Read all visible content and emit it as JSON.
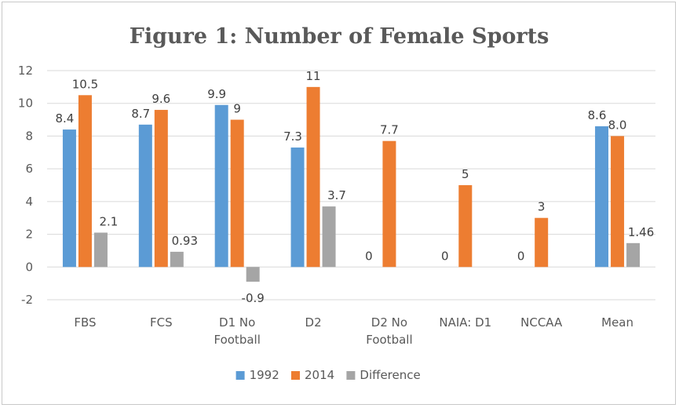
{
  "chart_data": {
    "type": "bar",
    "title": "Figure 1: Number of Female Sports",
    "xlabel": "",
    "ylabel": "",
    "ylim": [
      -2,
      12
    ],
    "yticks": [
      -2,
      0,
      2,
      4,
      6,
      8,
      10,
      12
    ],
    "grid": true,
    "legend_position": "bottom",
    "categories": [
      [
        "FBS"
      ],
      [
        "FCS"
      ],
      [
        "D1 No",
        "Football"
      ],
      [
        "D2"
      ],
      [
        "D2 No",
        "Football"
      ],
      [
        "NAIA: D1"
      ],
      [
        "NCCAA"
      ],
      [
        "Mean"
      ]
    ],
    "series": [
      {
        "name": "1992",
        "color": "#5b9bd5",
        "values": [
          8.4,
          8.7,
          9.9,
          7.3,
          0,
          0,
          0,
          8.6
        ],
        "labels": [
          "8.4",
          "8.7",
          "9.9",
          "7.3",
          "0",
          "0",
          "0",
          "8.6"
        ],
        "label_colors": [
          "",
          "",
          "",
          "",
          "",
          "",
          "",
          ""
        ]
      },
      {
        "name": "2014",
        "color": "#ed7d31",
        "values": [
          10.5,
          9.6,
          9,
          11,
          7.7,
          5,
          3,
          8.0
        ],
        "labels": [
          "10.5",
          "9.6",
          "9",
          "11",
          "7.7",
          "5",
          "3",
          "8.0"
        ],
        "label_colors": [
          "",
          "",
          "",
          "",
          "",
          "",
          "",
          ""
        ]
      },
      {
        "name": "Difference",
        "color": "#a5a5a5",
        "values": [
          2.1,
          0.93,
          -0.9,
          3.7,
          null,
          null,
          null,
          1.46
        ],
        "labels": [
          "2.1",
          "0.93",
          "-0.9",
          "3.7",
          "",
          "",
          "",
          "1.46"
        ],
        "label_colors": [
          "",
          "",
          "#ff0000",
          "",
          "",
          "",
          "",
          ""
        ]
      }
    ]
  }
}
